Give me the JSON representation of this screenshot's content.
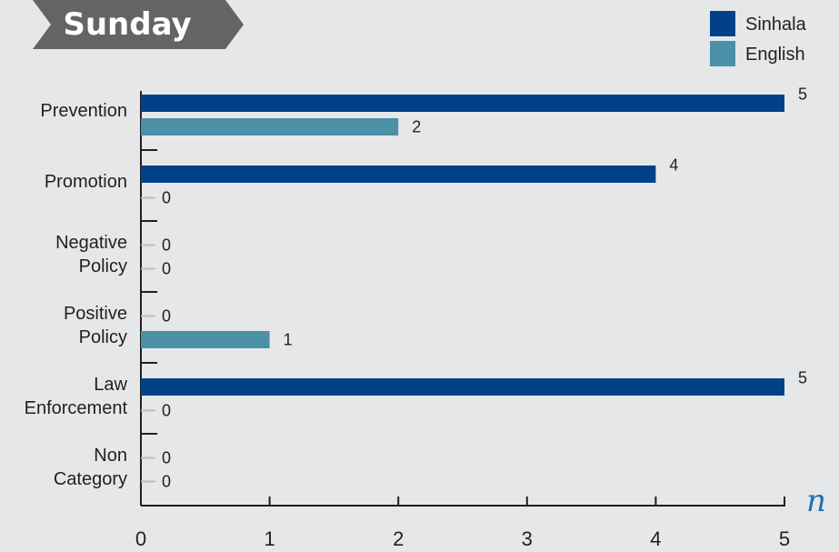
{
  "title": "Sunday",
  "colors": {
    "sinhala": "#00418a",
    "english": "#4b90a6",
    "banner": "#636466",
    "zero_marker": "#bcbdc0",
    "axis": "#231f20",
    "n_label": "#1f6fb4"
  },
  "legend": {
    "items": [
      {
        "label": "Sinhala",
        "color": "#00418a"
      },
      {
        "label": "English",
        "color": "#4b90a6"
      }
    ]
  },
  "chart_data": {
    "type": "bar",
    "orientation": "horizontal",
    "title": "Sunday",
    "categories": [
      [
        "Prevention"
      ],
      [
        "Promotion"
      ],
      [
        "Negative",
        "Policy"
      ],
      [
        "Positive",
        "Policy"
      ],
      [
        "Law",
        "Enforcement"
      ],
      [
        "Non",
        "Category"
      ]
    ],
    "series": [
      {
        "name": "Sinhala",
        "values": [
          5,
          4,
          0,
          0,
          5,
          0
        ]
      },
      {
        "name": "English",
        "values": [
          2,
          0,
          0,
          1,
          0,
          0
        ]
      }
    ],
    "xlabel": "n",
    "xlim": [
      0,
      5
    ],
    "xticks": [
      "0",
      "1",
      "2",
      "3",
      "4",
      "5"
    ],
    "grid": false,
    "legend_position": "top-right"
  }
}
